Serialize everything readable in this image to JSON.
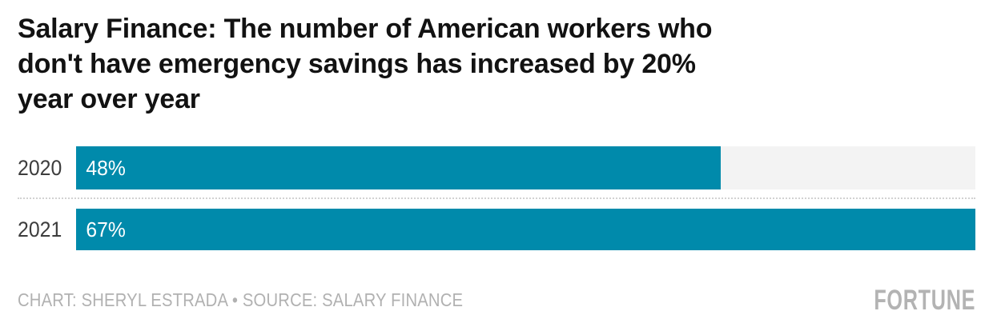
{
  "title_lines": [
    "Salary Finance: The number of American workers who",
    "don't have emergency savings has increased by 20%",
    "year over year"
  ],
  "chart_data": {
    "type": "bar",
    "orientation": "horizontal",
    "title": "Salary Finance: The number of American workers who don't have emergency savings has increased by 20% year over year",
    "categories": [
      "2020",
      "2021"
    ],
    "values": [
      48,
      67
    ],
    "value_labels": [
      "48%",
      "67%"
    ],
    "xlim": [
      0,
      67
    ],
    "xlabel": "",
    "ylabel": "",
    "grid": "off",
    "legend": "none",
    "bar_color": "#008aab",
    "track_color": "#f3f3f3"
  },
  "footer": {
    "credit": "CHART: SHERYL ESTRADA • SOURCE: SALARY FINANCE",
    "brand": "FORTUNE"
  },
  "colors": {
    "title": "#121212",
    "category_label": "#3d3d3d",
    "value_label": "#ffffff",
    "separator": "#d2d2d2",
    "footer_text": "#b1b1b1",
    "brand": "#b3b3b3",
    "background": "#ffffff"
  }
}
